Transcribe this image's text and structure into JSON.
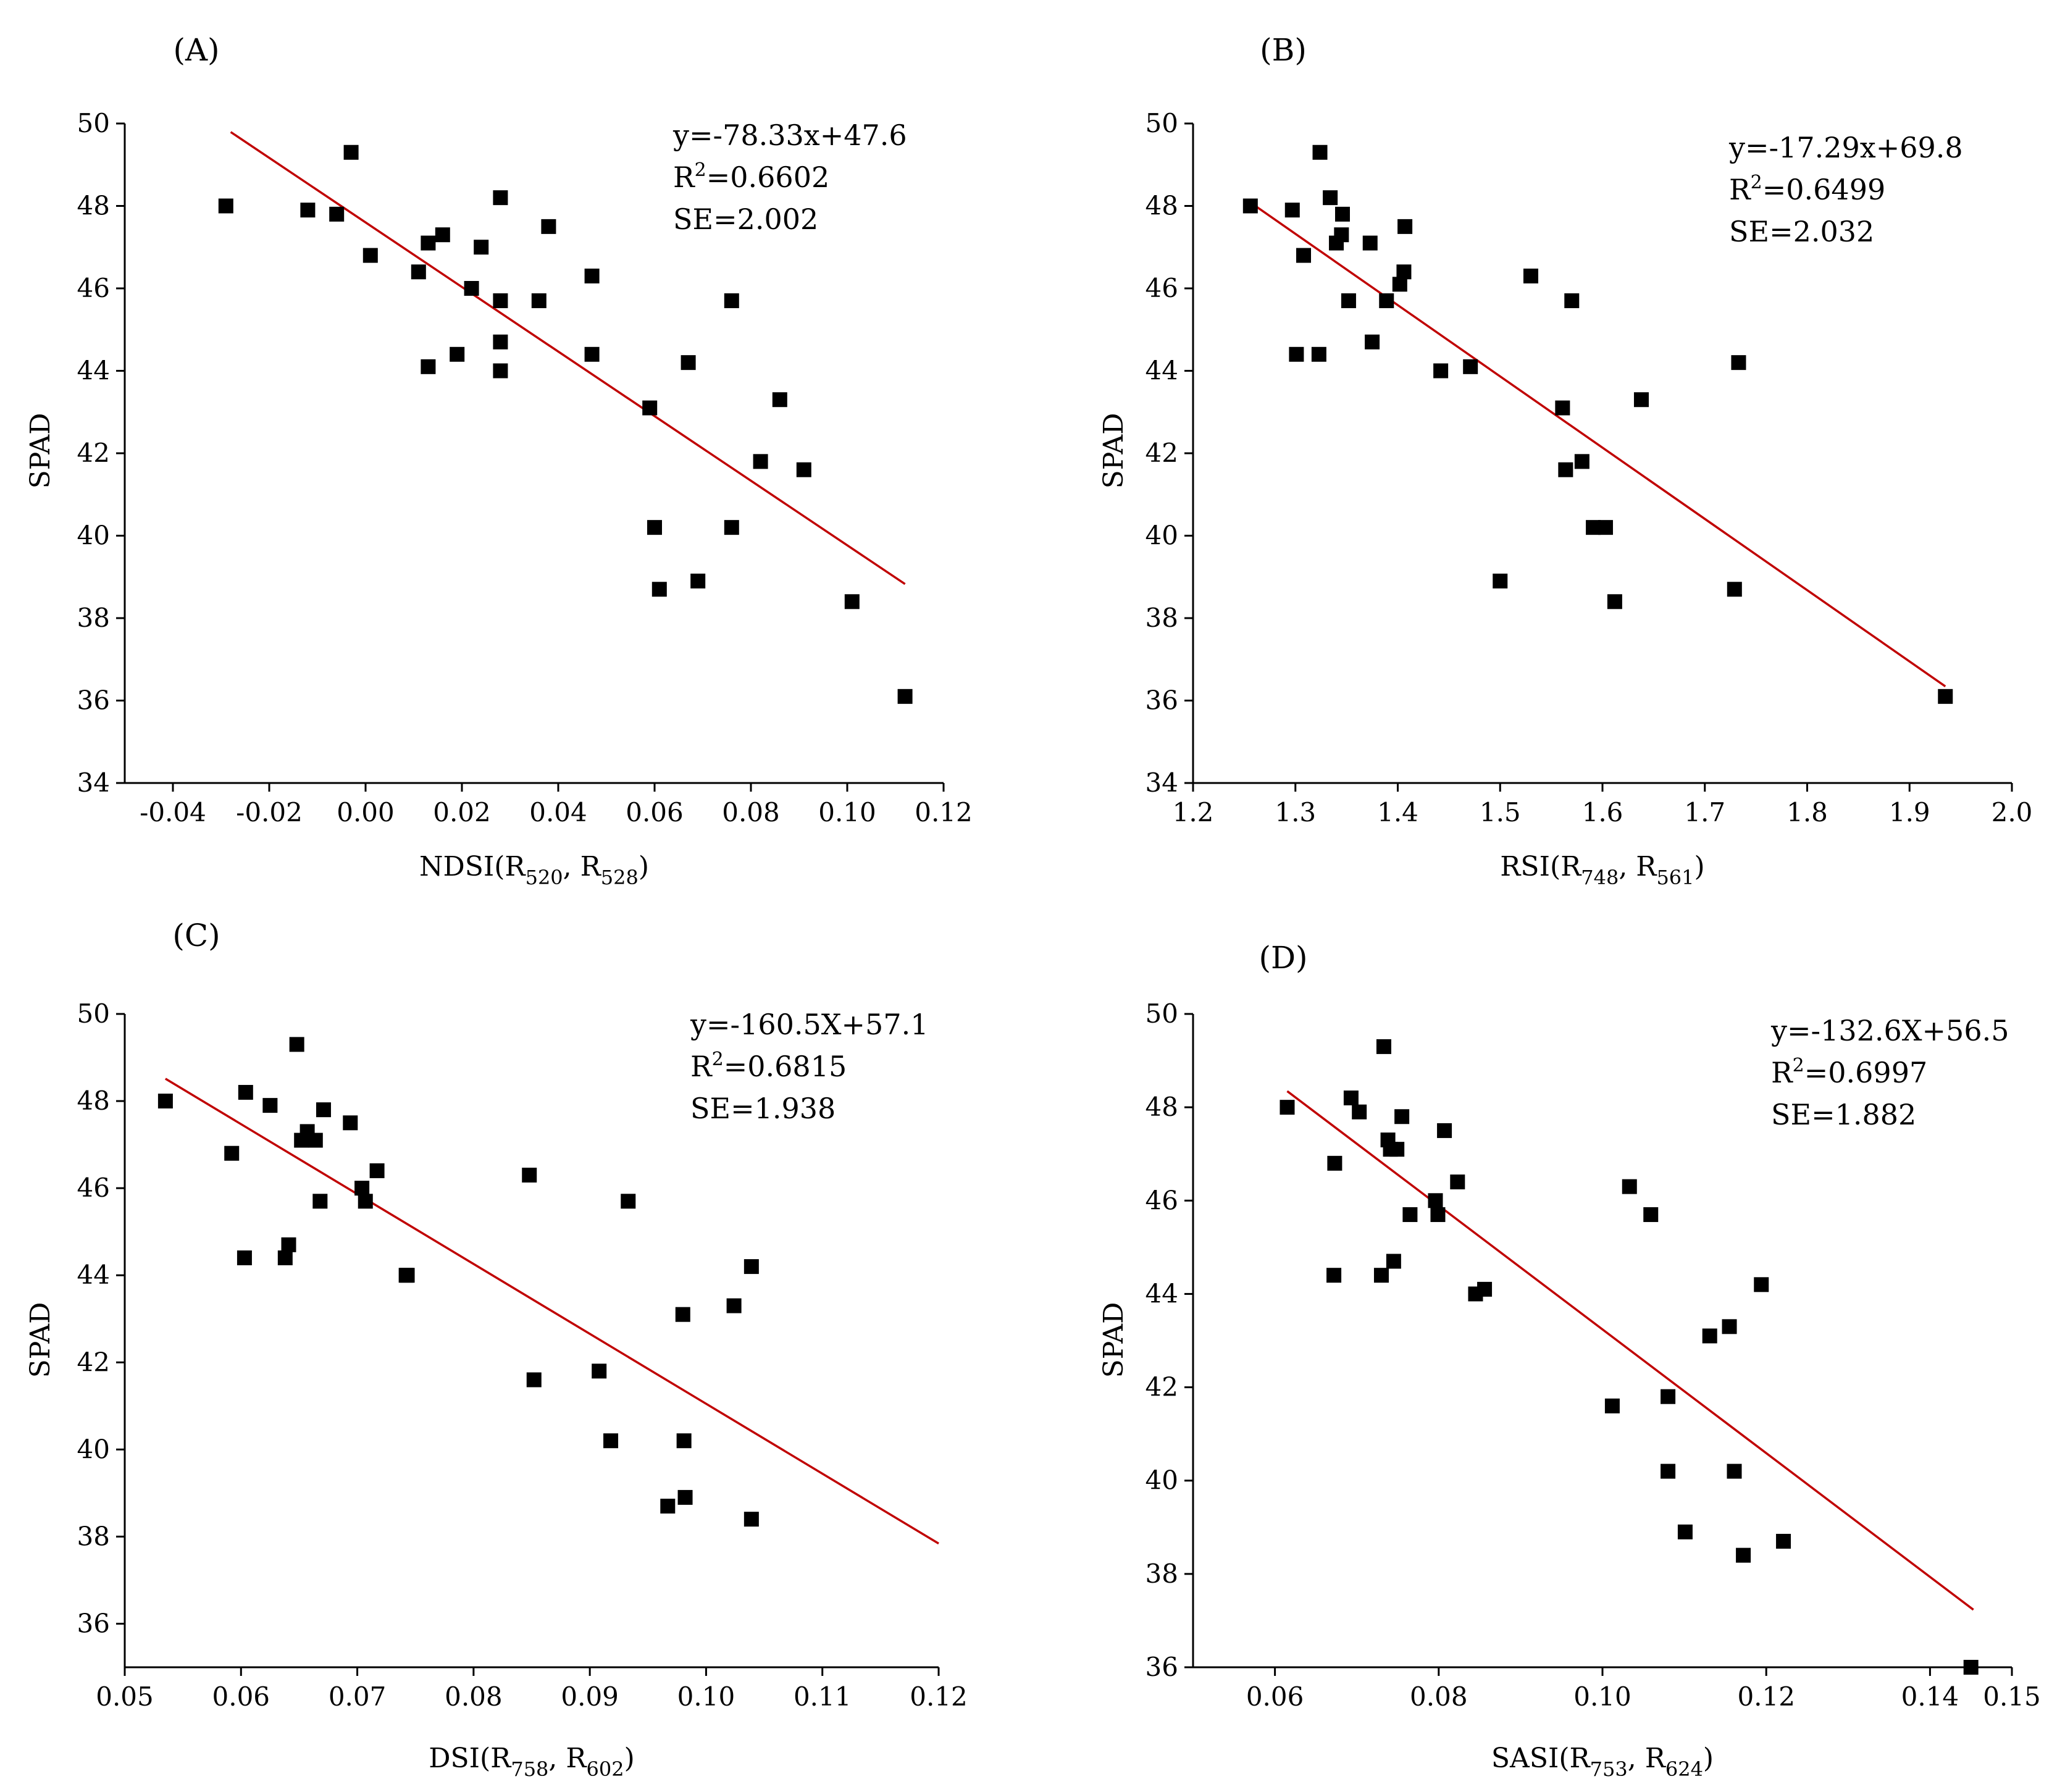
{
  "chart_data": [
    {
      "type": "scatter",
      "panel": "(A)",
      "xlabel": {
        "main": "NDSI(R",
        "s1": "520",
        "sep": ", R",
        "s2": "528",
        "end": ")"
      },
      "ylabel": "SPAD",
      "xlim": [
        -0.05,
        0.12
      ],
      "ylim": [
        34,
        50
      ],
      "xticks": [
        -0.04,
        -0.02,
        0.0,
        0.02,
        0.04,
        0.06,
        0.08,
        0.1,
        0.12
      ],
      "xtick_labels": [
        "-0.04",
        "-0.02",
        "0.00",
        "0.02",
        "0.04",
        "0.06",
        "0.08",
        "0.10",
        "0.12"
      ],
      "yticks": [
        34,
        36,
        38,
        40,
        42,
        44,
        46,
        48,
        50
      ],
      "fit": {
        "slope": -78.33,
        "intercept": 47.6,
        "x_range": [
          -0.028,
          0.112
        ]
      },
      "equation": {
        "eq": "y=-78.33x+47.6",
        "r2_prefix": "R",
        "r2_sup": "2",
        "r2_value": "=0.6602",
        "se": "SE=2.002"
      },
      "points": [
        [
          -0.029,
          48.0
        ],
        [
          -0.012,
          47.9
        ],
        [
          -0.006,
          47.8
        ],
        [
          -0.003,
          49.3
        ],
        [
          0.001,
          46.8
        ],
        [
          0.011,
          46.4
        ],
        [
          0.013,
          47.1
        ],
        [
          0.016,
          47.3
        ],
        [
          0.013,
          44.1
        ],
        [
          0.019,
          44.4
        ],
        [
          0.022,
          46.0
        ],
        [
          0.024,
          47.0
        ],
        [
          0.028,
          48.2
        ],
        [
          0.028,
          45.7
        ],
        [
          0.028,
          44.7
        ],
        [
          0.028,
          44.0
        ],
        [
          0.036,
          45.7
        ],
        [
          0.038,
          47.5
        ],
        [
          0.047,
          46.3
        ],
        [
          0.047,
          44.4
        ],
        [
          0.059,
          43.1
        ],
        [
          0.06,
          40.2
        ],
        [
          0.061,
          38.7
        ],
        [
          0.067,
          44.2
        ],
        [
          0.069,
          38.9
        ],
        [
          0.076,
          45.7
        ],
        [
          0.076,
          40.2
        ],
        [
          0.082,
          41.8
        ],
        [
          0.086,
          43.3
        ],
        [
          0.091,
          41.6
        ],
        [
          0.101,
          38.4
        ],
        [
          0.112,
          36.1
        ]
      ]
    },
    {
      "type": "scatter",
      "panel": "(B)",
      "xlabel": {
        "main": "RSI(R",
        "s1": "748",
        "sep": ", R",
        "s2": "561",
        "end": ")"
      },
      "ylabel": "SPAD",
      "xlim": [
        1.2,
        2.0
      ],
      "ylim": [
        34,
        50
      ],
      "xticks": [
        1.2,
        1.3,
        1.4,
        1.5,
        1.6,
        1.7,
        1.8,
        1.9,
        2.0
      ],
      "xtick_labels": [
        "1.2",
        "1.3",
        "1.4",
        "1.5",
        "1.6",
        "1.7",
        "1.8",
        "1.9",
        "2.0"
      ],
      "yticks": [
        34,
        36,
        38,
        40,
        42,
        44,
        46,
        48,
        50
      ],
      "fit": {
        "slope": -17.29,
        "intercept": 69.8,
        "x_range": [
          1.257,
          1.935
        ]
      },
      "equation": {
        "eq": "y=-17.29x+69.8",
        "r2_prefix": "R",
        "r2_sup": "2",
        "r2_value": "=0.6499",
        "se": "SE=2.032"
      },
      "points": [
        [
          1.256,
          48.0
        ],
        [
          1.297,
          47.9
        ],
        [
          1.301,
          44.4
        ],
        [
          1.308,
          46.8
        ],
        [
          1.323,
          44.4
        ],
        [
          1.324,
          49.3
        ],
        [
          1.334,
          48.2
        ],
        [
          1.34,
          47.1
        ],
        [
          1.345,
          47.3
        ],
        [
          1.346,
          47.8
        ],
        [
          1.352,
          45.7
        ],
        [
          1.373,
          47.1
        ],
        [
          1.375,
          44.7
        ],
        [
          1.389,
          45.7
        ],
        [
          1.402,
          46.1
        ],
        [
          1.406,
          46.4
        ],
        [
          1.407,
          47.5
        ],
        [
          1.442,
          44.0
        ],
        [
          1.471,
          44.1
        ],
        [
          1.5,
          38.9
        ],
        [
          1.53,
          46.3
        ],
        [
          1.561,
          43.1
        ],
        [
          1.564,
          41.6
        ],
        [
          1.57,
          45.7
        ],
        [
          1.58,
          41.8
        ],
        [
          1.591,
          40.2
        ],
        [
          1.603,
          40.2
        ],
        [
          1.612,
          38.4
        ],
        [
          1.638,
          43.3
        ],
        [
          1.729,
          38.7
        ],
        [
          1.733,
          44.2
        ],
        [
          1.935,
          36.1
        ]
      ]
    },
    {
      "type": "scatter",
      "panel": "(C)",
      "xlabel": {
        "main": "DSI(R",
        "s1": "758",
        "sep": ", R",
        "s2": "602",
        "end": ")"
      },
      "ylabel": "SPAD",
      "xlim": [
        0.05,
        0.12
      ],
      "ylim": [
        35,
        50
      ],
      "xticks": [
        0.05,
        0.06,
        0.07,
        0.08,
        0.09,
        0.1,
        0.11,
        0.12
      ],
      "xtick_labels": [
        "0.05",
        "0.06",
        "0.07",
        "0.08",
        "0.09",
        "0.10",
        "0.11",
        "0.12"
      ],
      "yticks": [
        36,
        38,
        40,
        42,
        44,
        46,
        48,
        50
      ],
      "fit": {
        "slope": -160.5,
        "intercept": 57.1,
        "x_range": [
          0.0535,
          0.12
        ]
      },
      "equation": {
        "eq": "y=-160.5X+57.1",
        "r2_prefix": "R",
        "r2_sup": "2",
        "r2_value": "=0.6815",
        "se": "SE=1.938"
      },
      "points": [
        [
          0.0535,
          48.0
        ],
        [
          0.0592,
          46.8
        ],
        [
          0.0603,
          44.4
        ],
        [
          0.0604,
          48.2
        ],
        [
          0.0625,
          47.9
        ],
        [
          0.0638,
          44.4
        ],
        [
          0.0641,
          44.7
        ],
        [
          0.0648,
          49.3
        ],
        [
          0.0652,
          47.1
        ],
        [
          0.0657,
          47.3
        ],
        [
          0.0664,
          47.1
        ],
        [
          0.0668,
          45.7
        ],
        [
          0.0671,
          47.8
        ],
        [
          0.0694,
          47.5
        ],
        [
          0.0704,
          46.0
        ],
        [
          0.0707,
          45.7
        ],
        [
          0.0717,
          46.4
        ],
        [
          0.0742,
          44.0
        ],
        [
          0.0743,
          44.0
        ],
        [
          0.0848,
          46.3
        ],
        [
          0.0852,
          41.6
        ],
        [
          0.0908,
          41.8
        ],
        [
          0.0918,
          40.2
        ],
        [
          0.0933,
          45.7
        ],
        [
          0.0967,
          38.7
        ],
        [
          0.098,
          43.1
        ],
        [
          0.0981,
          40.2
        ],
        [
          0.0982,
          38.9
        ],
        [
          0.1024,
          43.3
        ],
        [
          0.1039,
          38.4
        ],
        [
          0.1039,
          44.2
        ]
      ]
    },
    {
      "type": "scatter",
      "panel": "(D)",
      "xlabel": {
        "main": "SASI(R",
        "s1": "753",
        "sep": ", R",
        "s2": "624",
        "end": ")"
      },
      "ylabel": "SPAD",
      "xlim": [
        0.05,
        0.15
      ],
      "ylim": [
        36,
        50
      ],
      "xticks": [
        0.06,
        0.08,
        0.1,
        0.12,
        0.14,
        0.15
      ],
      "xtick_labels": [
        "0.06",
        "0.08",
        "0.10",
        "0.12",
        "0.14",
        "0.15"
      ],
      "yticks": [
        36,
        38,
        40,
        42,
        44,
        46,
        48,
        50
      ],
      "fit": {
        "slope": -132.6,
        "intercept": 56.5,
        "x_range": [
          0.0615,
          0.1453
        ]
      },
      "equation": {
        "eq": "y=-132.6X+56.5",
        "r2_prefix": "R",
        "r2_sup": "2",
        "r2_value": "=0.6997",
        "se": "SE=1.882"
      },
      "points": [
        [
          0.0615,
          48.0
        ],
        [
          0.0672,
          44.4
        ],
        [
          0.0673,
          46.8
        ],
        [
          0.0693,
          48.2
        ],
        [
          0.0703,
          47.9
        ],
        [
          0.073,
          44.4
        ],
        [
          0.0733,
          49.3
        ],
        [
          0.0738,
          47.3
        ],
        [
          0.0741,
          47.1
        ],
        [
          0.0745,
          44.7
        ],
        [
          0.0749,
          47.1
        ],
        [
          0.0755,
          47.8
        ],
        [
          0.0765,
          45.7
        ],
        [
          0.0796,
          46.0
        ],
        [
          0.0799,
          45.7
        ],
        [
          0.0807,
          47.5
        ],
        [
          0.0823,
          46.4
        ],
        [
          0.0845,
          44.0
        ],
        [
          0.0856,
          44.1
        ],
        [
          0.1012,
          41.6
        ],
        [
          0.1033,
          46.3
        ],
        [
          0.1059,
          45.7
        ],
        [
          0.108,
          41.8
        ],
        [
          0.108,
          40.2
        ],
        [
          0.1101,
          38.9
        ],
        [
          0.1131,
          43.1
        ],
        [
          0.1155,
          43.3
        ],
        [
          0.1161,
          40.2
        ],
        [
          0.1172,
          38.4
        ],
        [
          0.1194,
          44.2
        ],
        [
          0.1221,
          38.7
        ],
        [
          0.145,
          36.0
        ]
      ]
    }
  ]
}
